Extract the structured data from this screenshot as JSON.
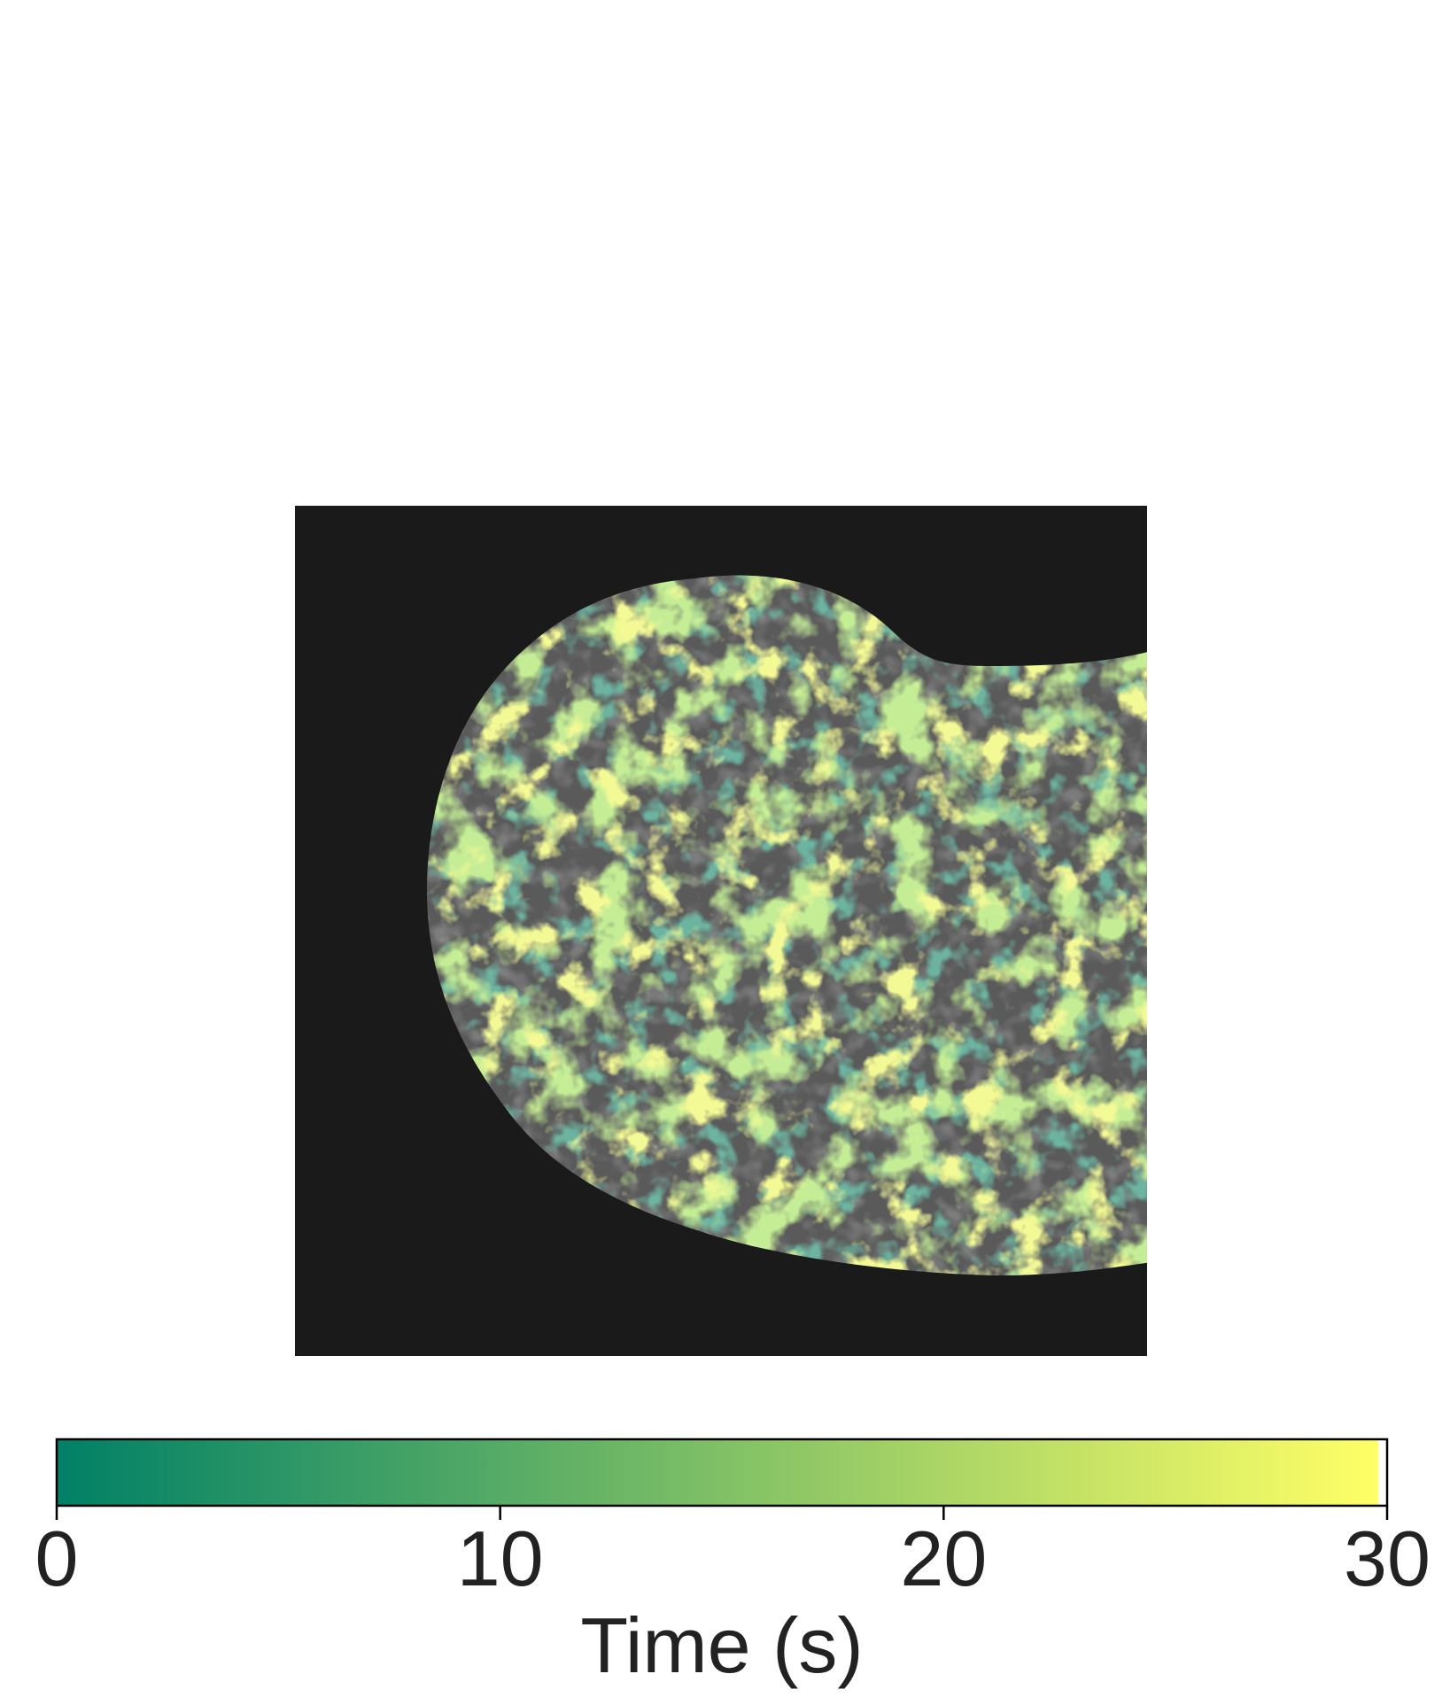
{
  "figure": {
    "background": "#ffffff",
    "image_panel": {
      "background_color": "#1a1a1a",
      "nucleus_base_color": "#5a5a5a",
      "nucleus_dark_color": "#333333"
    },
    "colorbar": {
      "label": "Time (s)",
      "vmin": 0,
      "vmax": 30,
      "ticks": [
        "0",
        "10",
        "20",
        "30"
      ],
      "tick_values": [
        0,
        10,
        20,
        30
      ],
      "colormap": [
        "#008066",
        "#80c066",
        "#ffff66"
      ],
      "orientation": "horizontal"
    }
  }
}
